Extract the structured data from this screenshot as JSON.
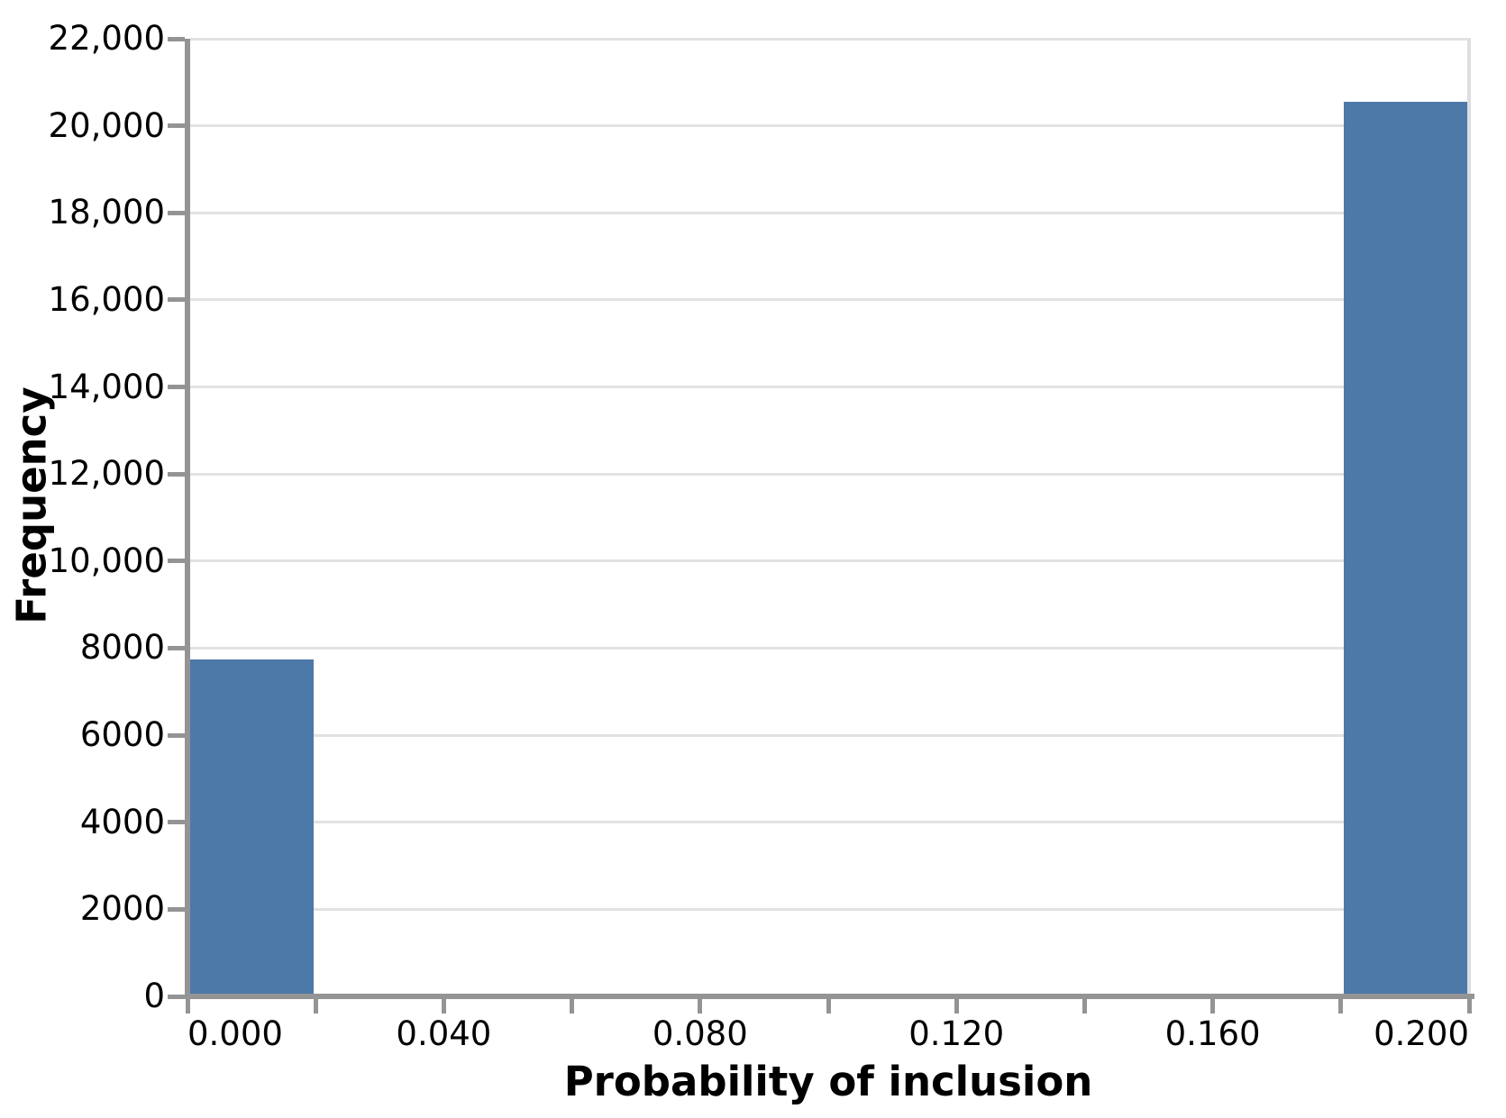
{
  "chart_data": {
    "type": "bar",
    "subtype": "histogram",
    "title": "",
    "xlabel": "Probability of inclusion",
    "ylabel": "Frequency",
    "xlim": [
      0.0,
      0.2
    ],
    "ylim": [
      0,
      22000
    ],
    "grid": "horizontal",
    "legend": "none",
    "bin_width": 0.02,
    "bins": [
      {
        "x0": 0.0,
        "x1": 0.02,
        "count": 7750
      },
      {
        "x0": 0.02,
        "x1": 0.04,
        "count": 0
      },
      {
        "x0": 0.04,
        "x1": 0.06,
        "count": 0
      },
      {
        "x0": 0.06,
        "x1": 0.08,
        "count": 0
      },
      {
        "x0": 0.08,
        "x1": 0.1,
        "count": 0
      },
      {
        "x0": 0.1,
        "x1": 0.12,
        "count": 0
      },
      {
        "x0": 0.12,
        "x1": 0.14,
        "count": 0
      },
      {
        "x0": 0.14,
        "x1": 0.16,
        "count": 0
      },
      {
        "x0": 0.16,
        "x1": 0.18,
        "count": 0
      },
      {
        "x0": 0.18,
        "x1": 0.2,
        "count": 20550
      }
    ],
    "x_axis": {
      "minor_tick_step": 0.02,
      "minor_tick_values": [
        0.0,
        0.02,
        0.04,
        0.06,
        0.08,
        0.1,
        0.12,
        0.14,
        0.16,
        0.18,
        0.2
      ],
      "labels": [
        {
          "value": 0.0,
          "label": "0.000"
        },
        {
          "value": 0.04,
          "label": "0.040"
        },
        {
          "value": 0.08,
          "label": "0.080"
        },
        {
          "value": 0.12,
          "label": "0.120"
        },
        {
          "value": 0.16,
          "label": "0.160"
        },
        {
          "value": 0.2,
          "label": "0.200"
        }
      ]
    },
    "y_axis": {
      "tick_step": 2000,
      "ticks": [
        {
          "value": 0,
          "label": "0"
        },
        {
          "value": 2000,
          "label": "2000"
        },
        {
          "value": 4000,
          "label": "4000"
        },
        {
          "value": 6000,
          "label": "6000"
        },
        {
          "value": 8000,
          "label": "8000"
        },
        {
          "value": 10000,
          "label": "10,000"
        },
        {
          "value": 12000,
          "label": "12,000"
        },
        {
          "value": 14000,
          "label": "14,000"
        },
        {
          "value": 16000,
          "label": "16,000"
        },
        {
          "value": 18000,
          "label": "18,000"
        },
        {
          "value": 20000,
          "label": "20,000"
        },
        {
          "value": 22000,
          "label": "22,000"
        }
      ]
    },
    "colors": {
      "bar": "#4d79a9",
      "axis": "#949494",
      "gridline": "#e2e2e2",
      "plot_border_right": "#dcdee1",
      "text": "#000000"
    }
  }
}
